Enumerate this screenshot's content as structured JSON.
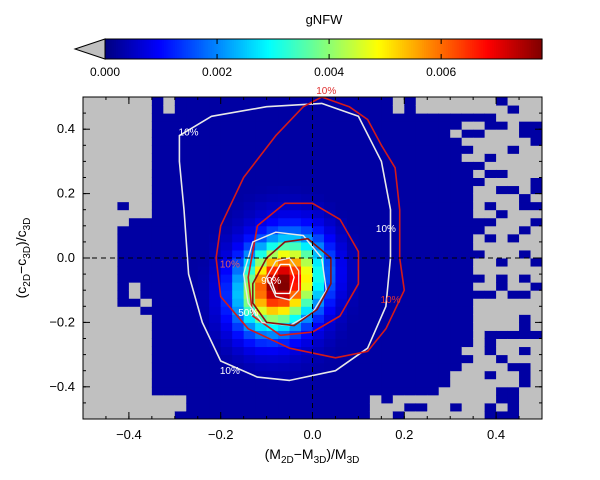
{
  "chart_data": {
    "type": "heatmap",
    "colorbar": {
      "title": "gNFW",
      "range": [
        0.0,
        0.0078
      ],
      "ticks": [
        0.0,
        0.002,
        0.004,
        0.006
      ],
      "tick_labels": [
        "0.000",
        "0.002",
        "0.004",
        "0.006"
      ],
      "colormap": "jet",
      "underflow_color": "#c0c0c0"
    },
    "x_axis": {
      "label_parts": [
        "(M",
        "2D",
        "−M",
        "3D",
        ")/M",
        "3D"
      ],
      "range": [
        -0.5,
        0.5
      ],
      "ticks": [
        -0.4,
        -0.2,
        0.0,
        0.2,
        0.4
      ],
      "tick_labels": [
        "−0.4",
        "−0.2",
        "0.0",
        "0.2",
        "0.4"
      ]
    },
    "y_axis": {
      "label_parts": [
        "(c",
        "2D",
        "−c",
        "3D",
        ")/c",
        "3D"
      ],
      "range": [
        -0.5,
        0.5
      ],
      "ticks": [
        -0.4,
        -0.2,
        0.0,
        0.2,
        0.4
      ],
      "tick_labels": [
        "−0.4",
        "−0.2",
        "0.0",
        "0.2",
        "0.4"
      ]
    },
    "grid": {
      "nx": 40,
      "ny": 40
    },
    "density_peak": {
      "x": -0.07,
      "y": -0.08,
      "value": 0.0078
    },
    "reference_lines": {
      "x": 0.0,
      "y": 0.0,
      "style": "dashed"
    },
    "contour_sets": [
      {
        "color": "#e8e8e8",
        "labels": [
          "10%",
          "50%",
          "90%"
        ]
      },
      {
        "color": "#d41a1a",
        "labels": [
          "10%",
          "50%",
          "90%"
        ]
      }
    ],
    "contour_label_positions": [
      {
        "text": "10%",
        "x": -0.27,
        "y": 0.38,
        "color": "#ffffff"
      },
      {
        "text": "10%",
        "x": 0.16,
        "y": 0.08,
        "color": "#ffffff"
      },
      {
        "text": "10%",
        "x": -0.18,
        "y": -0.36,
        "color": "#ffffff"
      },
      {
        "text": "10%",
        "x": -0.18,
        "y": -0.03,
        "color": "#e06060"
      },
      {
        "text": "10%",
        "x": 0.03,
        "y": 0.51,
        "color": "#e03030"
      },
      {
        "text": "10%",
        "x": 0.17,
        "y": -0.14,
        "color": "#e03030"
      },
      {
        "text": "50%",
        "x": -0.14,
        "y": -0.18,
        "color": "#ffffff"
      },
      {
        "text": "90%",
        "x": -0.09,
        "y": -0.08,
        "color": "#ffffff"
      }
    ]
  }
}
